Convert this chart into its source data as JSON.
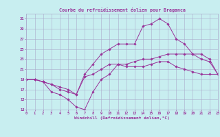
{
  "title": "Courbe du refroidissement éolien pour Braganca",
  "xlabel": "Windchill (Refroidissement éolien,°C)",
  "bg_color": "#c8eef0",
  "grid_color": "#aaaacc",
  "line_color": "#993399",
  "xmin": 0,
  "xmax": 23,
  "ymin": 13,
  "ymax": 32,
  "yticks": [
    13,
    15,
    17,
    19,
    21,
    23,
    25,
    27,
    29,
    31
  ],
  "xticks": [
    0,
    1,
    2,
    3,
    4,
    5,
    6,
    7,
    8,
    9,
    10,
    11,
    12,
    13,
    14,
    15,
    16,
    17,
    18,
    19,
    20,
    21,
    22,
    23
  ],
  "line1_x": [
    0,
    1,
    2,
    3,
    4,
    5,
    6,
    7,
    8,
    9,
    10,
    11,
    12,
    13,
    14,
    15,
    16,
    17,
    18,
    19,
    20,
    21,
    22,
    23
  ],
  "line1_y": [
    19,
    19,
    18.5,
    16.5,
    16,
    15,
    13.5,
    13,
    16.5,
    19,
    20,
    22,
    21.5,
    21.5,
    21.5,
    22,
    22.5,
    22.5,
    21.5,
    21,
    20.5,
    20,
    20,
    20
  ],
  "line2_x": [
    0,
    1,
    2,
    3,
    4,
    5,
    6,
    7,
    8,
    9,
    10,
    11,
    12,
    13,
    14,
    15,
    16,
    17,
    18,
    19,
    20,
    21,
    22,
    23
  ],
  "line2_y": [
    19,
    19,
    18.5,
    18,
    17.5,
    17,
    16,
    19.5,
    20,
    21,
    22,
    22,
    22,
    22.5,
    23,
    23,
    23.5,
    24,
    24,
    24,
    24,
    23,
    22.5,
    20
  ],
  "line3_x": [
    0,
    1,
    2,
    3,
    4,
    5,
    6,
    7,
    8,
    9,
    10,
    11,
    12,
    13,
    14,
    15,
    16,
    17,
    18,
    19,
    20,
    21,
    22,
    23
  ],
  "line3_y": [
    19,
    19,
    18.5,
    18,
    17,
    16.5,
    16,
    20,
    22,
    24,
    25,
    26,
    26,
    26,
    29.5,
    30,
    31,
    30,
    27,
    26,
    24,
    24,
    23,
    20
  ]
}
